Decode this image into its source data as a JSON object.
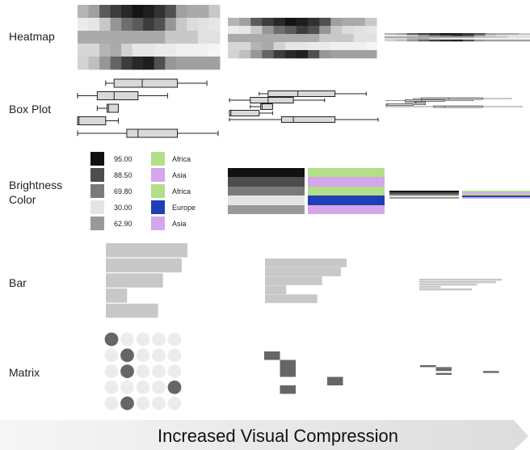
{
  "rows": [
    {
      "id": "heatmap",
      "label": "Heatmap"
    },
    {
      "id": "boxplot",
      "label": "Box Plot"
    },
    {
      "id": "brightness",
      "label": "Brightness\nColor"
    },
    {
      "id": "bar",
      "label": "Bar"
    },
    {
      "id": "matrix",
      "label": "Matrix"
    }
  ],
  "legend": {
    "values": [
      "95.00",
      "88.50",
      "69.80",
      "30.00",
      "62.90"
    ],
    "value_colors": [
      "#111111",
      "#4d4d4d",
      "#7a7a7a",
      "#e4e4e4",
      "#999999"
    ],
    "categories": [
      "Africa",
      "Asia",
      "Africa",
      "Europe",
      "Asia"
    ],
    "category_colors": [
      "#b2df8a",
      "#d4a6ec",
      "#b2df8a",
      "#1f3fb4",
      "#d4a6ec"
    ]
  },
  "bar_values": [
    100,
    93,
    70,
    26,
    64
  ],
  "matrix_positions": [
    0,
    1,
    1,
    4,
    1
  ],
  "footer": {
    "label": "Increased Visual Compression"
  },
  "colors": {
    "bar": "#c8c8c8",
    "matrix_on": "#666666",
    "matrix_off": "#ececec",
    "box_fill": "#d9d9d9"
  }
}
